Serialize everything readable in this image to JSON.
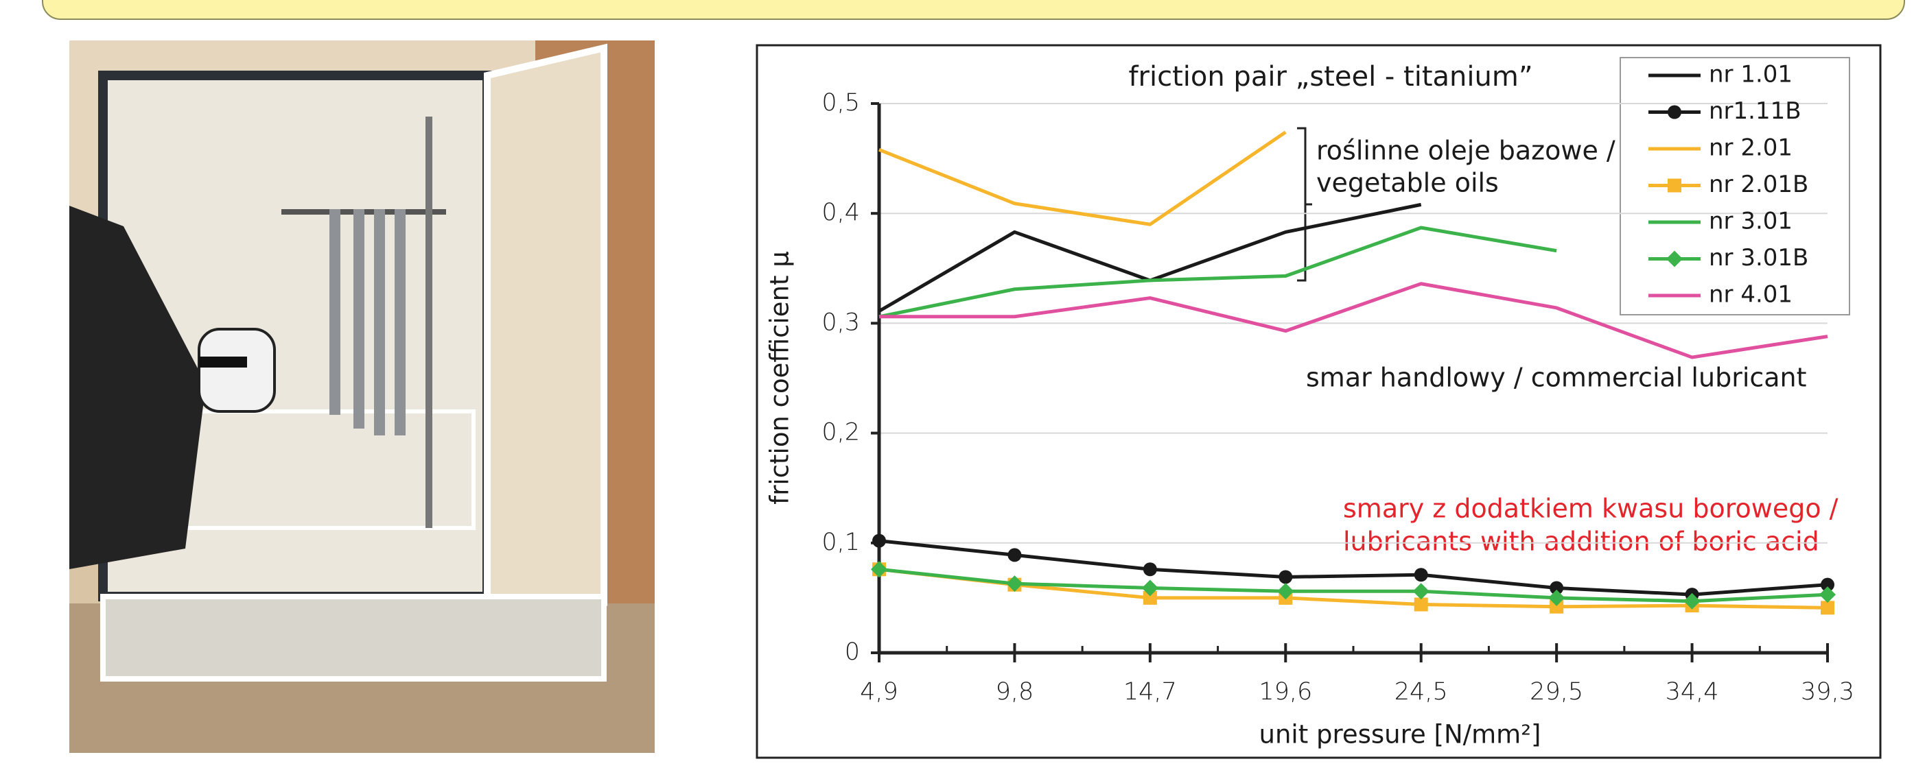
{
  "chart_data": {
    "type": "line",
    "title": "friction pair „steel - titanium”",
    "y_label": "friction coefficient μ",
    "x_label": "unit pressure   [N/mm²]",
    "annotations": [
      "roślinne oleje bazowe /",
      "vegetable oils",
      "smar handlowy / commercial lubricant",
      "smary z dodatkiem kwasu borowego /",
      "lubricants with addition of boric acid"
    ],
    "categories": [
      "4,9",
      "9,8",
      "14,7",
      "19,6",
      "24,5",
      "29,5",
      "34,4",
      "39,3"
    ],
    "ylim": [
      0,
      0.5
    ],
    "yticks": [
      0,
      {
        "value": 0.1,
        "label": "0,1"
      },
      {
        "value": 0.2,
        "label": "0,2"
      },
      {
        "value": 0.3,
        "label": "0,3"
      },
      {
        "value": 0.4,
        "label": "0,4"
      },
      {
        "value": 0.5,
        "label": "0,5"
      }
    ],
    "grid": true,
    "legend": "upper right",
    "series": [
      {
        "name": "nr 1.01",
        "color": "#1a1a1a",
        "marker": "none",
        "values": [
          0.311,
          0.383,
          0.339,
          0.383,
          0.408,
          null,
          null,
          null
        ]
      },
      {
        "name": "nr1.11B",
        "color": "#1a1a1a",
        "marker": "circle",
        "values": [
          0.102,
          0.089,
          0.076,
          0.069,
          0.071,
          0.059,
          0.053,
          0.062
        ]
      },
      {
        "name": "nr 2.01",
        "color": "#f7b52c",
        "marker": "none",
        "values": [
          0.458,
          0.409,
          0.39,
          0.474,
          null,
          null,
          null,
          null
        ]
      },
      {
        "name": "nr 2.01B",
        "color": "#f7b52c",
        "marker": "square",
        "values": [
          0.076,
          0.062,
          0.05,
          0.05,
          0.044,
          0.042,
          0.043,
          0.041
        ]
      },
      {
        "name": "nr 3.01",
        "color": "#3bb34a",
        "marker": "none",
        "values": [
          0.306,
          0.331,
          0.339,
          0.343,
          0.387,
          0.366,
          null,
          null
        ]
      },
      {
        "name": "nr 3.01B",
        "color": "#3bb34a",
        "marker": "diamond",
        "values": [
          0.076,
          0.063,
          0.059,
          0.056,
          0.056,
          0.05,
          0.047,
          0.053
        ]
      },
      {
        "name": "nr 4.01",
        "color": "#e0509f",
        "marker": "none",
        "values": [
          0.306,
          0.306,
          0.323,
          0.293,
          0.336,
          0.314,
          0.269,
          0.288
        ]
      }
    ]
  }
}
